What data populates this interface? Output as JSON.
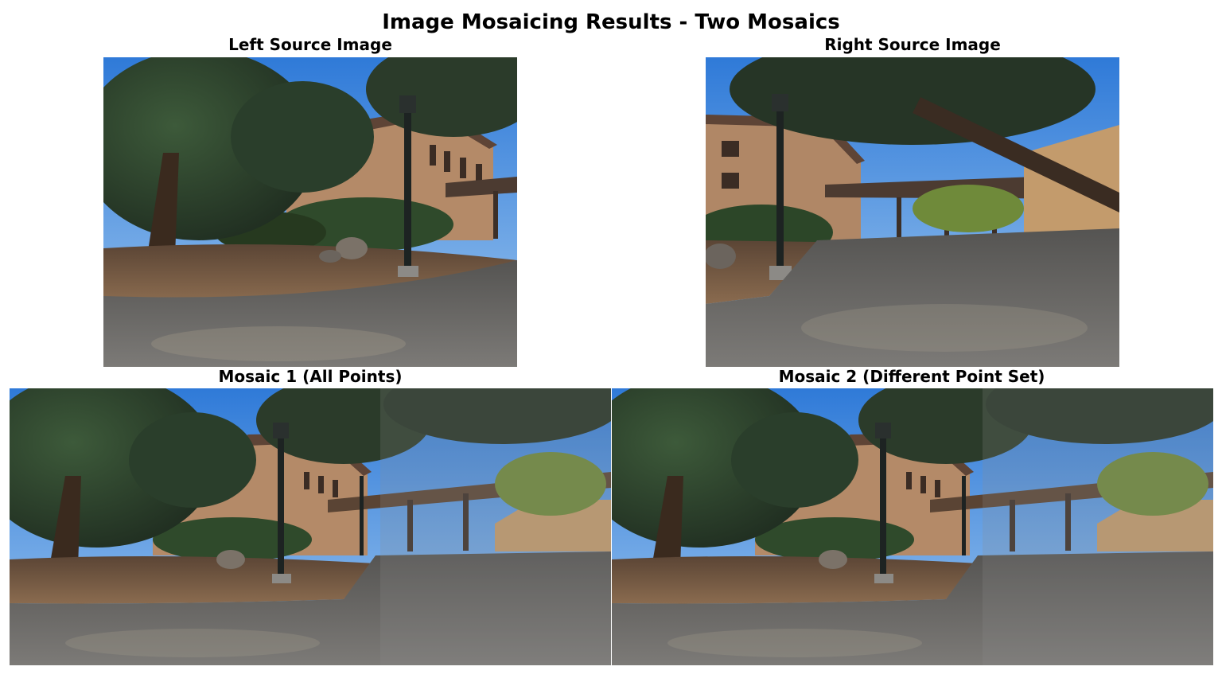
{
  "figure": {
    "title": "Image Mosaicing Results - Two Mosaics"
  },
  "panels": {
    "left_source": {
      "title": "Left Source Image"
    },
    "right_source": {
      "title": "Right Source Image"
    },
    "mosaic_1": {
      "title": "Mosaic 1 (All Points)"
    },
    "mosaic_2": {
      "title": "Mosaic 2 (Different Point Set)"
    }
  },
  "colors": {
    "sky": "#5b9be0",
    "foliage_dark": "#2c3d2c",
    "building_wall": "#b48a68",
    "roof": "#6a4a3a",
    "ground_dirt": "#7a5a42",
    "pavement": "#6e6c6a",
    "lamp_post": "#1d2322",
    "overlap_tint": "#8f8e8c"
  }
}
